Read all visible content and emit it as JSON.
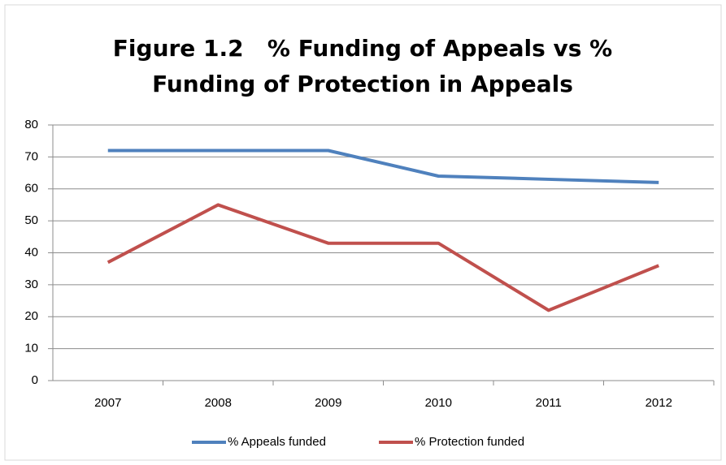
{
  "chart_data": {
    "type": "line",
    "title": "Figure 1.2   % Funding of Appeals vs % Funding of Protection in Appeals",
    "categories": [
      "2007",
      "2008",
      "2009",
      "2010",
      "2011",
      "2012"
    ],
    "series": [
      {
        "name": "% Appeals funded",
        "color": "#4f81bd",
        "values": [
          72,
          72,
          72,
          64,
          63,
          62
        ]
      },
      {
        "name": "% Protection funded",
        "color": "#c0504d",
        "values": [
          37,
          55,
          43,
          43,
          22,
          36
        ]
      }
    ],
    "ylim": [
      0,
      80
    ],
    "yticks": [
      0,
      10,
      20,
      30,
      40,
      50,
      60,
      70,
      80
    ],
    "grid": true,
    "legend": "bottom"
  }
}
